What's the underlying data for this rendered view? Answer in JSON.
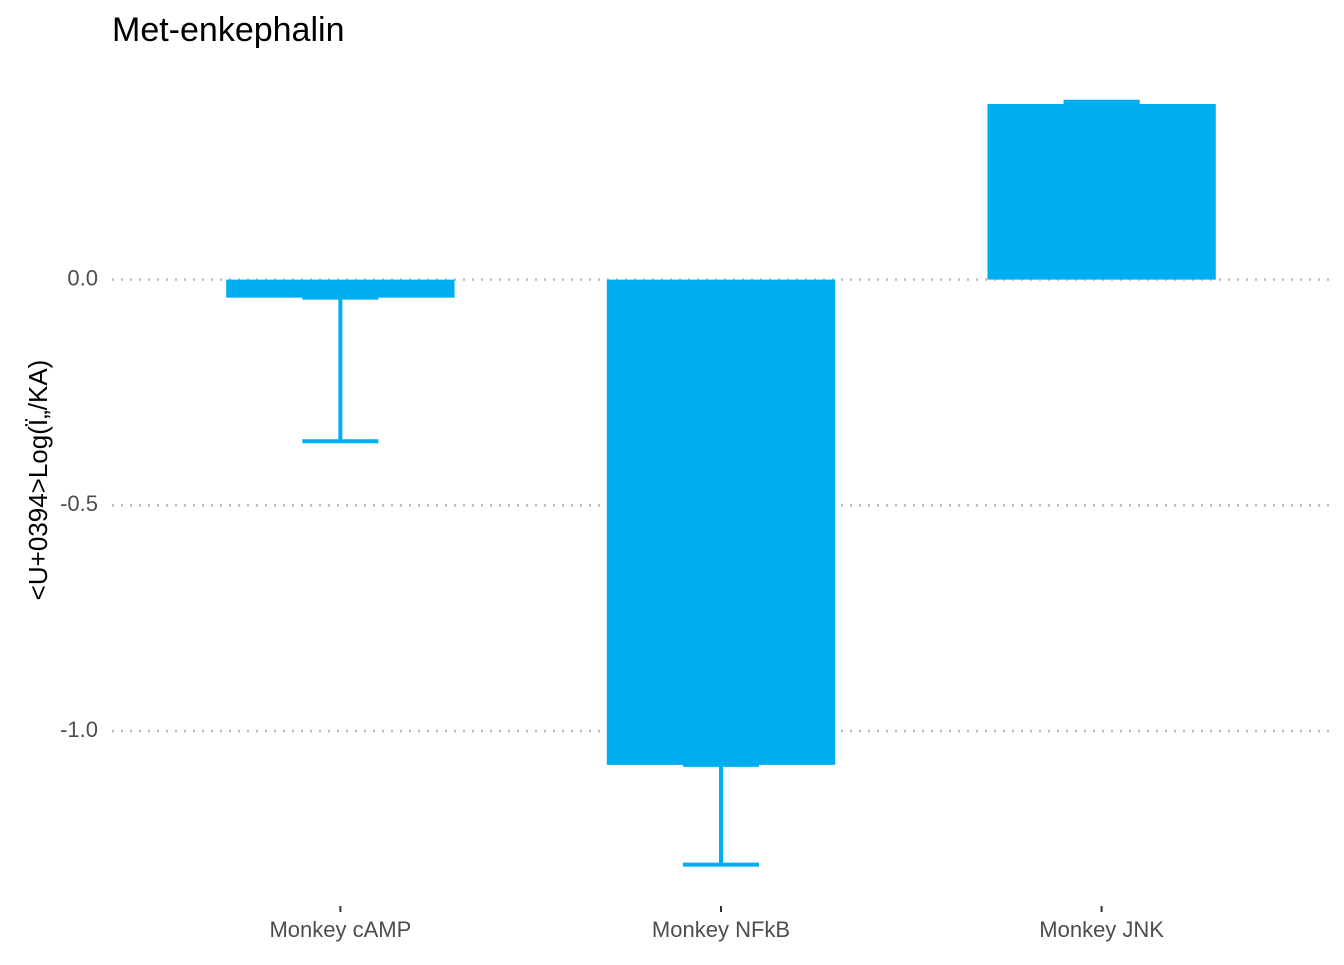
{
  "chart_data": {
    "type": "bar",
    "title": "Met-enkephalin",
    "y_label": "<U+0394>Log(Ï„/KA)",
    "categories": [
      "Monkey cAMP",
      "Monkey NFkB",
      "Monkey JNK"
    ],
    "values": [
      -0.04,
      -1.075,
      0.389
    ],
    "errors": [
      0.318,
      0.221,
      0.005
    ],
    "color": "#00AEEF",
    "ylim": [
      -1.33,
      0.42
    ],
    "yticks": [
      {
        "value": 0,
        "label": "0.0"
      },
      -0.5,
      {
        "value": -1,
        "label": "-1.0"
      }
    ],
    "grid": true
  }
}
